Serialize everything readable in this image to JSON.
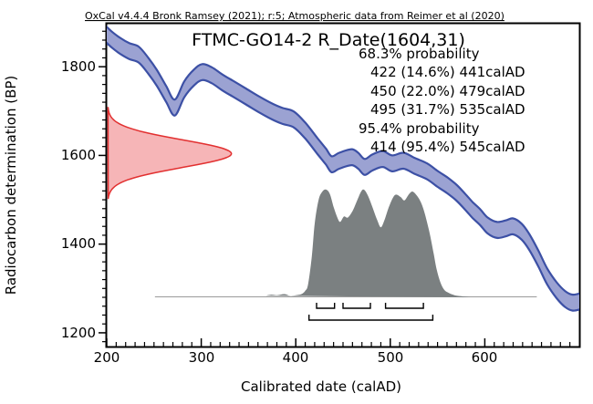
{
  "citation": "OxCal v4.4.4 Bronk Ramsey (2021); r:5; Atmospheric data from Reimer et al (2020)",
  "title": "FTMC-GO14-2 R_Date(1604,31)",
  "annotations": {
    "lines": [
      "68.3% probability",
      "422 (14.6%) 441calAD",
      "450 (22.0%) 479calAD",
      "495 (31.7%) 535calAD",
      "95.4% probability",
      "414 (95.4%) 545calAD"
    ]
  },
  "axes": {
    "x": {
      "label": "Calibrated date (calAD)",
      "ticks": [
        200,
        300,
        400,
        500,
        600
      ],
      "minor_step": 10
    },
    "y": {
      "label": "Radiocarbon determination (BP)",
      "ticks": [
        1800,
        1600,
        1400,
        1200
      ],
      "minor_step": 20
    }
  },
  "colors": {
    "curve_stroke": "#3c50a5",
    "curve_fill": "#9ba2d2",
    "likelihood_stroke": "#e23030",
    "likelihood_fill": "#f6b5b7",
    "posterior_fill": "#7b8081",
    "baseline": "#9a9a9a",
    "frame": "#000000",
    "text": "#000000"
  },
  "chart_data": {
    "type": "line",
    "title": "FTMC-GO14-2 R_Date(1604,31)",
    "xlabel": "Calibrated date (calAD)",
    "ylabel": "Radiocarbon determination (BP)",
    "xlim": [
      200,
      700
    ],
    "ylim": [
      1169,
      1897
    ],
    "grid": false,
    "series": [
      {
        "name": "calibration-curve-band",
        "kind": "band",
        "band_half_width_bp": 18,
        "x_calAD": [
          197,
          206,
          215,
          224,
          234,
          244,
          253,
          263,
          272,
          282,
          292,
          301,
          311,
          322,
          333,
          348,
          362,
          375,
          386,
          398,
          410,
          423,
          432,
          438,
          446,
          459,
          466,
          473,
          481,
          492,
          502,
          514,
          526,
          539,
          550,
          560,
          570,
          579,
          587,
          595,
          603,
          613,
          623,
          630,
          639,
          647,
          657,
          666,
          676,
          685,
          693,
          701
        ],
        "y_bp": [
          1878,
          1860,
          1846,
          1835,
          1827,
          1802,
          1775,
          1738,
          1708,
          1749,
          1775,
          1788,
          1781,
          1765,
          1751,
          1732,
          1714,
          1699,
          1689,
          1681,
          1656,
          1621,
          1597,
          1580,
          1588,
          1596,
          1588,
          1574,
          1584,
          1592,
          1582,
          1588,
          1576,
          1564,
          1547,
          1533,
          1516,
          1496,
          1477,
          1461,
          1442,
          1432,
          1436,
          1440,
          1428,
          1405,
          1366,
          1327,
          1296,
          1276,
          1268,
          1271
        ]
      },
      {
        "name": "radiocarbon-likelihood",
        "kind": "gaussian-vertical",
        "mean_bp": 1604,
        "sigma_bp": 31,
        "amplitude_years": 131
      },
      {
        "name": "calibrated-posterior",
        "kind": "area",
        "baseline_bp": 1280,
        "peak_height_bp": 243,
        "baseline_extent_calAD": [
          251,
          655
        ],
        "x_calAD": [
          368,
          374,
          380,
          388,
          394,
          400,
          406,
          410,
          413,
          417,
          420,
          424,
          428,
          432,
          436,
          440,
          444,
          447,
          451,
          455,
          460,
          465,
          469,
          472,
          476,
          481,
          486,
          490,
          494,
          499,
          505,
          511,
          515,
          520,
          524,
          530,
          535,
          541,
          546,
          549,
          553,
          557,
          562,
          568,
          575,
          584
        ],
        "rel_height": [
          0.015,
          0.025,
          0.02,
          0.03,
          0.015,
          0.02,
          0.03,
          0.06,
          0.12,
          0.38,
          0.68,
          0.9,
          0.98,
          1.0,
          0.96,
          0.84,
          0.74,
          0.7,
          0.75,
          0.74,
          0.8,
          0.9,
          0.98,
          1.0,
          0.95,
          0.84,
          0.72,
          0.65,
          0.72,
          0.85,
          0.95,
          0.93,
          0.9,
          0.96,
          0.98,
          0.92,
          0.82,
          0.62,
          0.4,
          0.26,
          0.14,
          0.07,
          0.04,
          0.02,
          0.01,
          0.0
        ]
      }
    ],
    "ranges": {
      "sigma1": {
        "label": "68.3% probability",
        "intervals": [
          {
            "from": 422,
            "probability": "14.6%",
            "to": 441
          },
          {
            "from": 450,
            "probability": "22.0%",
            "to": 479
          },
          {
            "from": 495,
            "probability": "31.7%",
            "to": 535
          }
        ]
      },
      "sigma2": {
        "label": "95.4% probability",
        "intervals": [
          {
            "from": 414,
            "probability": "95.4%",
            "to": 545
          }
        ]
      }
    }
  }
}
